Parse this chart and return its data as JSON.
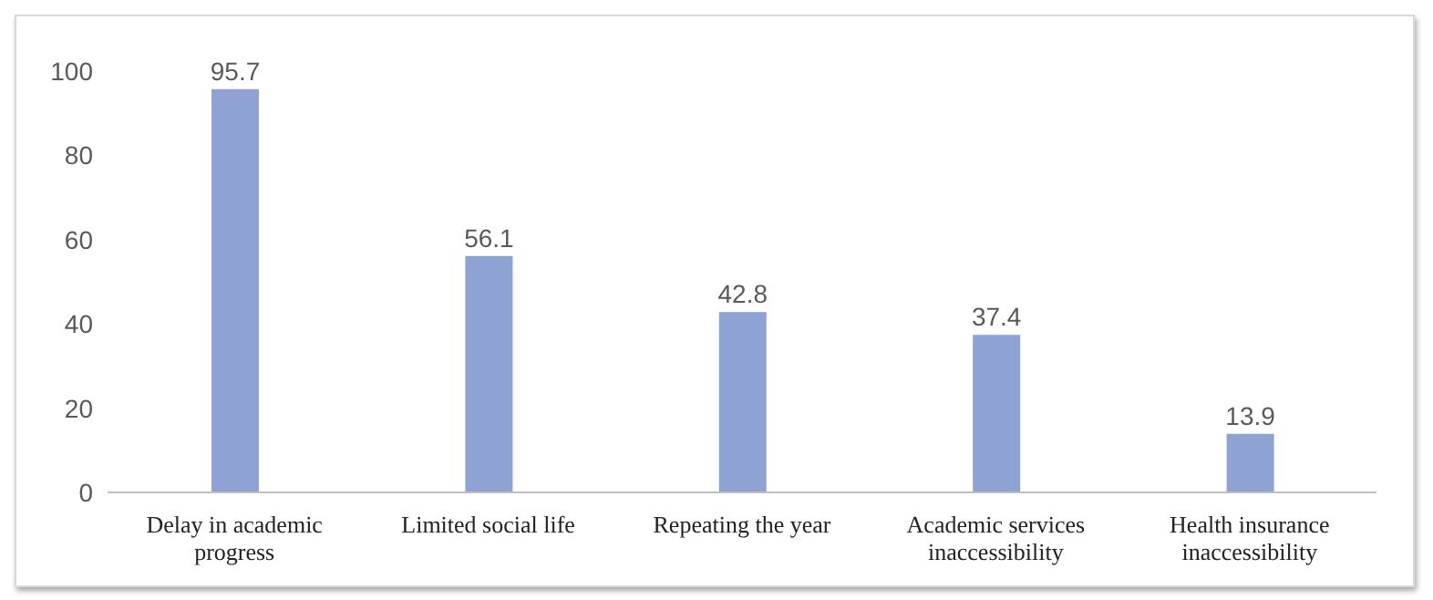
{
  "chart_data": {
    "type": "bar",
    "categories": [
      "Delay in academic progress",
      "Limited social life",
      "Repeating the year",
      "Academic services inaccessibility",
      "Health insurance inaccessibility"
    ],
    "values": [
      95.7,
      56.1,
      42.8,
      37.4,
      13.9
    ],
    "color": "#8fa2d4",
    "ylim": [
      0,
      100
    ],
    "yticks": [
      0,
      20,
      40,
      60,
      80,
      100
    ],
    "data_labels": true
  }
}
